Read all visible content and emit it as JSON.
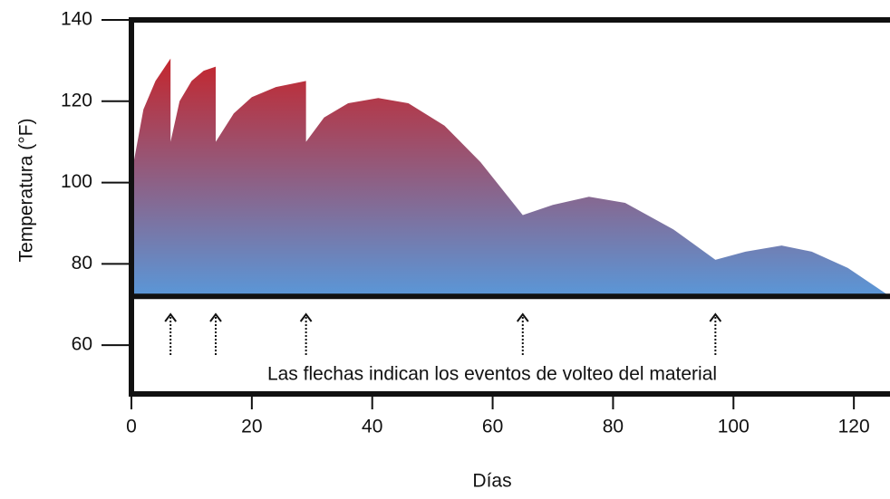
{
  "chart_data": {
    "type": "area",
    "xlabel": "Días",
    "ylabel": "Temperatura (°F)",
    "annotation": "Las flechas indican los eventos de volteo del material",
    "x": [
      0,
      2,
      4,
      6.5,
      6.5,
      8,
      10,
      12,
      14,
      14,
      17,
      20,
      24,
      29,
      29,
      32,
      36,
      41,
      46,
      52,
      58,
      65,
      70,
      76,
      82,
      90,
      97,
      102,
      108,
      113,
      119,
      126
    ],
    "y": [
      102,
      118,
      125,
      130.5,
      110,
      120,
      125,
      127.5,
      128.5,
      110,
      117,
      121,
      123.5,
      125,
      110,
      116,
      119.5,
      120.8,
      119.5,
      114,
      105,
      92,
      94.5,
      96.5,
      95,
      88.5,
      81,
      83,
      84.5,
      83,
      79,
      72
    ],
    "reference_line": 72,
    "events": [
      6.5,
      14,
      29,
      65,
      97
    ],
    "colors": [
      "#c4262d",
      "#5a97d8"
    ],
    "xlim": [
      0,
      126
    ],
    "ylim": [
      48,
      140
    ],
    "xticks": [
      0,
      20,
      40,
      60,
      80,
      100,
      120
    ],
    "yticks": [
      60,
      80,
      100,
      120,
      140
    ]
  }
}
